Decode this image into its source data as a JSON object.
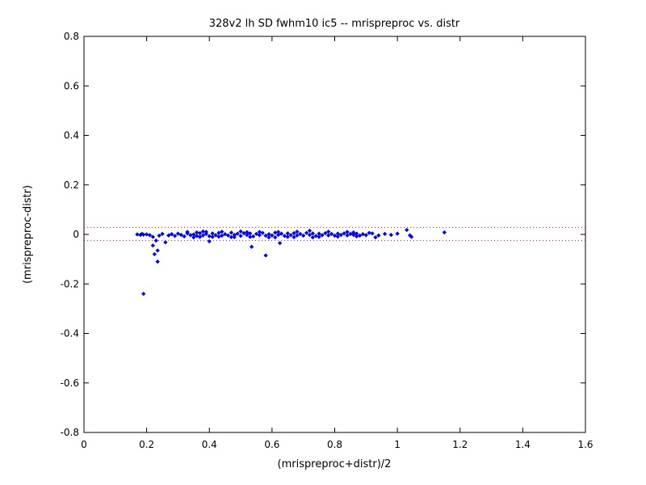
{
  "chart_data": {
    "type": "scatter",
    "title": "328v2 lh SD fwhm10 ic5 -- mrispreproc vs. distr",
    "xlabel": "(mrispreproc+distr)/2",
    "ylabel": "(mrispreproc-distr)",
    "xlim": [
      0,
      1.6
    ],
    "ylim": [
      -0.8,
      0.8
    ],
    "xticks": [
      0,
      0.2,
      0.4,
      0.6,
      0.8,
      1,
      1.2,
      1.4,
      1.6
    ],
    "xtick_labels": [
      "0",
      "0.2",
      "0.4",
      "0.6",
      "0.8",
      "1",
      "1.2",
      "1.4",
      "1.6"
    ],
    "yticks": [
      -0.8,
      -0.6,
      -0.4,
      -0.2,
      0,
      0.2,
      0.4,
      0.6,
      0.8
    ],
    "ytick_labels": [
      "-0.8",
      "-0.6",
      "-0.4",
      "-0.2",
      "0",
      "0.2",
      "0.4",
      "0.6",
      "0.8"
    ],
    "grid": false,
    "reference_lines": [
      0.028,
      -0.025
    ],
    "colors": {
      "points": "#0000ff",
      "reference_lines": "#ff0000",
      "axes": "#000000"
    },
    "series": [
      {
        "points": [
          [
            0.17,
            0.0
          ],
          [
            0.18,
            -0.002
          ],
          [
            0.185,
            0.002
          ],
          [
            0.19,
            -0.001
          ],
          [
            0.2,
            0.0
          ],
          [
            0.21,
            -0.003
          ],
          [
            0.22,
            -0.01
          ],
          [
            0.22,
            -0.045
          ],
          [
            0.225,
            -0.08
          ],
          [
            0.23,
            -0.025
          ],
          [
            0.235,
            -0.065
          ],
          [
            0.235,
            -0.11
          ],
          [
            0.19,
            -0.24
          ],
          [
            0.24,
            -0.005
          ],
          [
            0.25,
            0.002
          ],
          [
            0.26,
            -0.032
          ],
          [
            0.27,
            -0.004
          ],
          [
            0.28,
            0.001
          ],
          [
            0.29,
            -0.006
          ],
          [
            0.3,
            0.003
          ],
          [
            0.31,
            -0.002
          ],
          [
            0.32,
            -0.008
          ],
          [
            0.33,
            0.004
          ],
          [
            0.34,
            -0.003
          ],
          [
            0.35,
            0.0
          ],
          [
            0.36,
            -0.006
          ],
          [
            0.37,
            0.005
          ],
          [
            0.38,
            -0.004
          ],
          [
            0.39,
            0.002
          ],
          [
            0.4,
            -0.007
          ],
          [
            0.41,
            0.004
          ],
          [
            0.42,
            -0.003
          ],
          [
            0.43,
            0.006
          ],
          [
            0.44,
            -0.005
          ],
          [
            0.45,
            0.001
          ],
          [
            0.46,
            -0.004
          ],
          [
            0.47,
            0.007
          ],
          [
            0.48,
            -0.002
          ],
          [
            0.49,
            0.003
          ],
          [
            0.5,
            -0.006
          ],
          [
            0.51,
            0.005
          ],
          [
            0.52,
            -0.002
          ],
          [
            0.53,
            0.004
          ],
          [
            0.54,
            -0.008
          ],
          [
            0.55,
            0.002
          ],
          [
            0.56,
            -0.003
          ],
          [
            0.57,
            0.006
          ],
          [
            0.58,
            -0.005
          ],
          [
            0.59,
            0.001
          ],
          [
            0.6,
            -0.004
          ],
          [
            0.61,
            0.007
          ],
          [
            0.62,
            -0.002
          ],
          [
            0.63,
            0.003
          ],
          [
            0.64,
            -0.006
          ],
          [
            0.65,
            0.004
          ],
          [
            0.66,
            -0.003
          ],
          [
            0.67,
            0.005
          ],
          [
            0.68,
            -0.004
          ],
          [
            0.69,
            0.002
          ],
          [
            0.7,
            -0.005
          ],
          [
            0.71,
            0.006
          ],
          [
            0.72,
            -0.002
          ],
          [
            0.73,
            0.004
          ],
          [
            0.74,
            -0.006
          ],
          [
            0.75,
            0.003
          ],
          [
            0.76,
            -0.003
          ],
          [
            0.77,
            0.005
          ],
          [
            0.78,
            -0.004
          ],
          [
            0.79,
            0.002
          ],
          [
            0.8,
            -0.005
          ],
          [
            0.81,
            0.003
          ],
          [
            0.82,
            -0.002
          ],
          [
            0.83,
            0.004
          ],
          [
            0.84,
            -0.004
          ],
          [
            0.85,
            0.002
          ],
          [
            0.86,
            -0.002
          ],
          [
            0.87,
            0.003
          ],
          [
            0.88,
            -0.005
          ],
          [
            0.89,
            0.001
          ],
          [
            0.9,
            -0.003
          ],
          [
            0.92,
            0.004
          ],
          [
            0.94,
            -0.004
          ],
          [
            0.96,
            0.002
          ],
          [
            0.98,
            -0.002
          ],
          [
            1.0,
            0.003
          ],
          [
            1.03,
            0.018
          ],
          [
            1.04,
            -0.004
          ],
          [
            1.045,
            -0.01
          ],
          [
            1.15,
            0.008
          ],
          [
            0.33,
            0.01
          ],
          [
            0.35,
            -0.012
          ],
          [
            0.36,
            0.008
          ],
          [
            0.38,
            0.012
          ],
          [
            0.41,
            -0.01
          ],
          [
            0.44,
            0.011
          ],
          [
            0.47,
            -0.011
          ],
          [
            0.5,
            0.012
          ],
          [
            0.53,
            -0.01
          ],
          [
            0.56,
            0.01
          ],
          [
            0.59,
            -0.012
          ],
          [
            0.62,
            0.01
          ],
          [
            0.65,
            -0.01
          ],
          [
            0.68,
            0.011
          ],
          [
            0.72,
            0.015
          ],
          [
            0.75,
            -0.01
          ],
          [
            0.78,
            0.011
          ],
          [
            0.81,
            -0.009
          ],
          [
            0.84,
            0.01
          ],
          [
            0.87,
            -0.008
          ],
          [
            0.4,
            -0.028
          ],
          [
            0.535,
            -0.05
          ],
          [
            0.58,
            -0.085
          ],
          [
            0.625,
            -0.035
          ],
          [
            0.93,
            -0.012
          ],
          [
            0.91,
            0.006
          ],
          [
            0.86,
            0.008
          ],
          [
            0.73,
            -0.012
          ],
          [
            0.67,
            -0.011
          ],
          [
            0.61,
            -0.012
          ],
          [
            0.52,
            0.009
          ],
          [
            0.48,
            -0.011
          ],
          [
            0.43,
            -0.009
          ],
          [
            0.39,
            0.01
          ],
          [
            0.37,
            -0.01
          ]
        ]
      }
    ]
  }
}
